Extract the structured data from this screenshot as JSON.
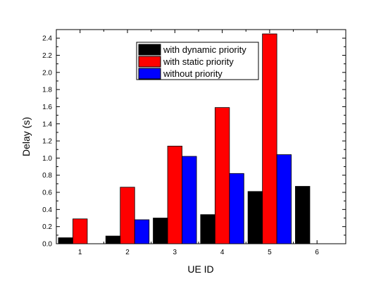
{
  "chart_data": {
    "type": "bar",
    "title": "",
    "xlabel": "UE ID",
    "ylabel": "Delay (s)",
    "categories": [
      "1",
      "2",
      "3",
      "4",
      "5",
      "6"
    ],
    "series": [
      {
        "name": "with dynamic priority",
        "color": "#000000",
        "values": [
          0.07,
          0.09,
          0.3,
          0.34,
          0.61,
          0.67
        ]
      },
      {
        "name": "with static priority",
        "color": "#ff0000",
        "values": [
          0.29,
          0.66,
          1.14,
          1.59,
          2.45,
          null
        ]
      },
      {
        "name": "without priority",
        "color": "#0000ff",
        "values": [
          null,
          0.28,
          1.02,
          0.82,
          1.04,
          null
        ]
      }
    ],
    "ylim": [
      0,
      2.5
    ],
    "yticks": [
      "0.0",
      "0.2",
      "0.4",
      "0.6",
      "0.8",
      "1.0",
      "1.2",
      "1.4",
      "1.6",
      "1.8",
      "2.0",
      "2.2",
      "2.4"
    ],
    "grid": false,
    "legend_position": "top-center"
  }
}
